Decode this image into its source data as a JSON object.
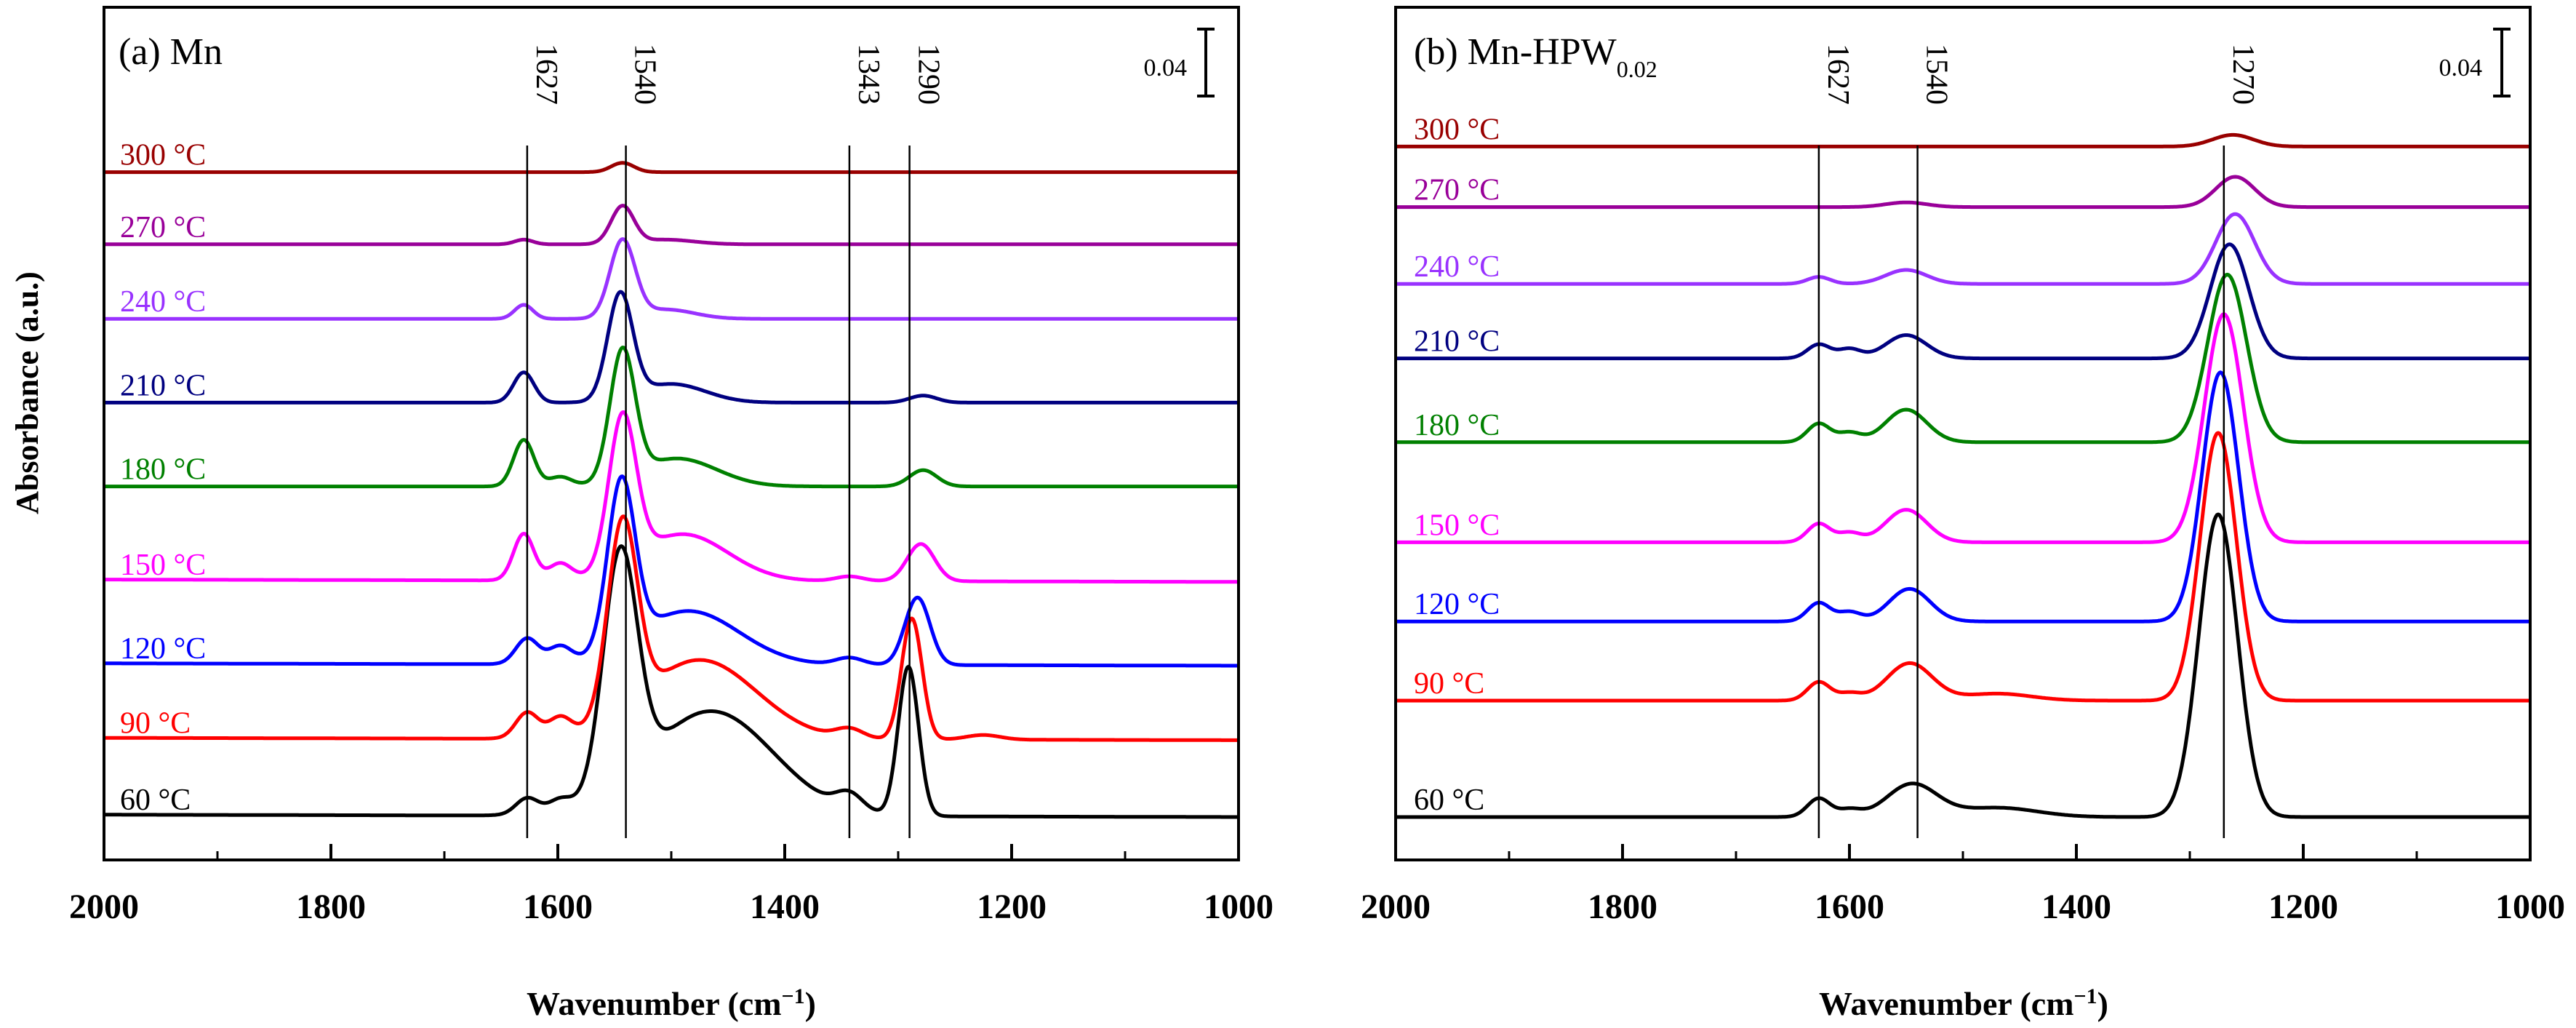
{
  "figure": {
    "ylabel": "Absorbance (a.u.)",
    "xlabel_main": "Wavenumber (cm",
    "xlabel_sup": "−1",
    "xlabel_close": ")"
  },
  "chart_data": [
    {
      "type": "line",
      "panel_label": "(a) Mn",
      "title_main": "(a) Mn",
      "title_sub": "",
      "xlim": [
        2000,
        1000
      ],
      "xticks": [
        2000,
        1800,
        1600,
        1400,
        1200,
        1000
      ],
      "xlabel": "Wavenumber (cm−1)",
      "ylabel": "Absorbance (a.u.)",
      "y_units": "absorbance (a.u.), stacked offsets",
      "ylim": [
        -0.01,
        0.34
      ],
      "scale_bar": {
        "label": "0.04",
        "value": 0.04
      },
      "marker_lines": [
        {
          "x": 1627,
          "label": "1627"
        },
        {
          "x": 1540,
          "label": "1540"
        },
        {
          "x": 1343,
          "label": "1343"
        },
        {
          "x": 1290,
          "label": "1290"
        }
      ],
      "series": [
        {
          "name": "60 °C",
          "label": "60 °C",
          "color": "#000000",
          "baseline": 0.0,
          "drift": 0.001,
          "peaks": [
            [
              1627,
              0.007,
              10
            ],
            [
              1598,
              0.005,
              10
            ],
            [
              1545,
              0.1,
              15
            ],
            [
              1465,
              0.045,
              55
            ],
            [
              1343,
              0.007,
              12
            ],
            [
              1291,
              0.064,
              9
            ]
          ]
        },
        {
          "name": "90 °C",
          "label": "90 °C",
          "color": "#ff0000",
          "baseline": 0.033,
          "drift": 0.001,
          "peaks": [
            [
              1627,
              0.011,
              10
            ],
            [
              1598,
              0.008,
              10
            ],
            [
              1543,
              0.082,
              13
            ],
            [
              1475,
              0.034,
              50
            ],
            [
              1343,
              0.004,
              12
            ],
            [
              1288,
              0.052,
              9
            ],
            [
              1225,
              0.002,
              15
            ]
          ]
        },
        {
          "name": "120 °C",
          "label": "120 °C",
          "color": "#0000ff",
          "baseline": 0.065,
          "drift": 0.001,
          "peaks": [
            [
              1627,
              0.011,
              10
            ],
            [
              1598,
              0.007,
              10
            ],
            [
              1544,
              0.071,
              12
            ],
            [
              1485,
              0.023,
              45
            ],
            [
              1343,
              0.003,
              12
            ],
            [
              1283,
              0.029,
              11
            ]
          ]
        },
        {
          "name": "150 °C",
          "label": "150 °C",
          "color": "#ff00ff",
          "baseline": 0.101,
          "drift": 0.001,
          "peaks": [
            [
              1630,
              0.02,
              9
            ],
            [
              1598,
              0.007,
              10
            ],
            [
              1543,
              0.064,
              12
            ],
            [
              1490,
              0.02,
              40
            ],
            [
              1343,
              0.002,
              12
            ],
            [
              1280,
              0.016,
              12
            ]
          ]
        },
        {
          "name": "180 °C",
          "label": "180 °C",
          "color": "#008000",
          "baseline": 0.142,
          "drift": 0.0,
          "peaks": [
            [
              1630,
              0.02,
              9
            ],
            [
              1598,
              0.004,
              10
            ],
            [
              1543,
              0.055,
              11
            ],
            [
              1495,
              0.012,
              35
            ],
            [
              1278,
              0.007,
              12
            ]
          ]
        },
        {
          "name": "210 °C",
          "label": "210 °C",
          "color": "#000080",
          "baseline": 0.178,
          "drift": 0.0,
          "peaks": [
            [
              1630,
              0.013,
              9
            ],
            [
              1545,
              0.045,
              11
            ],
            [
              1500,
              0.008,
              30
            ],
            [
              1278,
              0.003,
              12
            ]
          ]
        },
        {
          "name": "240 °C",
          "label": "240 °C",
          "color": "#9932ff",
          "baseline": 0.214,
          "drift": 0.0,
          "peaks": [
            [
              1630,
              0.006,
              8
            ],
            [
              1543,
              0.033,
              11
            ],
            [
              1505,
              0.004,
              25
            ]
          ]
        },
        {
          "name": "270 °C",
          "label": "270 °C",
          "color": "#990099",
          "baseline": 0.246,
          "drift": 0.0,
          "peaks": [
            [
              1630,
              0.002,
              8
            ],
            [
              1543,
              0.016,
              10
            ],
            [
              1505,
              0.002,
              25
            ]
          ]
        },
        {
          "name": "300 °C",
          "label": "300 °C",
          "color": "#990000",
          "baseline": 0.277,
          "drift": 0.0,
          "peaks": [
            [
              1543,
              0.004,
              10
            ]
          ]
        }
      ]
    },
    {
      "type": "line",
      "panel_label": "(b) Mn-HPW0.02",
      "title_main": "(b) Mn-HPW",
      "title_sub": "0.02",
      "xlim": [
        2000,
        1000
      ],
      "xticks": [
        2000,
        1800,
        1600,
        1400,
        1200,
        1000
      ],
      "xlabel": "Wavenumber (cm−1)",
      "ylabel": "Absorbance (a.u.)",
      "y_units": "absorbance (a.u.), stacked offsets",
      "ylim": [
        -0.01,
        0.34
      ],
      "scale_bar": {
        "label": "0.04",
        "value": 0.04
      },
      "marker_lines": [
        {
          "x": 1627,
          "label": "1627"
        },
        {
          "x": 1540,
          "label": "1540"
        },
        {
          "x": 1270,
          "label": "1270"
        }
      ],
      "series": [
        {
          "name": "60 °C",
          "label": "60 °C",
          "color": "#000000",
          "baseline": 0.0,
          "drift": 0.0,
          "peaks": [
            [
              1627,
              0.008,
              10
            ],
            [
              1600,
              0.003,
              10
            ],
            [
              1545,
              0.014,
              22
            ],
            [
              1470,
              0.004,
              35
            ],
            [
              1275,
              0.13,
              17
            ]
          ]
        },
        {
          "name": "90 °C",
          "label": "90 °C",
          "color": "#ff0000",
          "baseline": 0.05,
          "drift": 0.0,
          "peaks": [
            [
              1627,
              0.008,
              10
            ],
            [
              1600,
              0.003,
              10
            ],
            [
              1547,
              0.016,
              20
            ],
            [
              1470,
              0.003,
              30
            ],
            [
              1275,
              0.115,
              16
            ]
          ]
        },
        {
          "name": "120 °C",
          "label": "120 °C",
          "color": "#0000ff",
          "baseline": 0.084,
          "drift": 0.0,
          "peaks": [
            [
              1627,
              0.008,
              10
            ],
            [
              1600,
              0.004,
              10
            ],
            [
              1547,
              0.014,
              18
            ],
            [
              1273,
              0.107,
              16
            ]
          ]
        },
        {
          "name": "150 °C",
          "label": "150 °C",
          "color": "#ff00ff",
          "baseline": 0.118,
          "drift": 0.0,
          "peaks": [
            [
              1627,
              0.008,
              10
            ],
            [
              1600,
              0.004,
              10
            ],
            [
              1550,
              0.014,
              18
            ],
            [
              1270,
              0.098,
              17
            ]
          ]
        },
        {
          "name": "180 °C",
          "label": "180 °C",
          "color": "#008000",
          "baseline": 0.161,
          "drift": 0.0,
          "peaks": [
            [
              1627,
              0.008,
              10
            ],
            [
              1600,
              0.004,
              10
            ],
            [
              1550,
              0.014,
              18
            ],
            [
              1267,
              0.072,
              17
            ]
          ]
        },
        {
          "name": "210 °C",
          "label": "210 °C",
          "color": "#000080",
          "baseline": 0.197,
          "drift": 0.0,
          "peaks": [
            [
              1627,
              0.006,
              10
            ],
            [
              1600,
              0.004,
              10
            ],
            [
              1550,
              0.01,
              18
            ],
            [
              1265,
              0.049,
              17
            ]
          ]
        },
        {
          "name": "240 °C",
          "label": "240 °C",
          "color": "#9932ff",
          "baseline": 0.229,
          "drift": 0.0,
          "peaks": [
            [
              1627,
              0.003,
              10
            ],
            [
              1550,
              0.006,
              18
            ],
            [
              1260,
              0.03,
              17
            ]
          ]
        },
        {
          "name": "270 °C",
          "label": "270 °C",
          "color": "#990099",
          "baseline": 0.262,
          "drift": 0.0,
          "peaks": [
            [
              1550,
              0.002,
              18
            ],
            [
              1260,
              0.013,
              17
            ]
          ]
        },
        {
          "name": "300 °C",
          "label": "300 °C",
          "color": "#990000",
          "baseline": 0.288,
          "drift": 0.0,
          "peaks": [
            [
              1262,
              0.005,
              18
            ]
          ]
        }
      ]
    }
  ]
}
